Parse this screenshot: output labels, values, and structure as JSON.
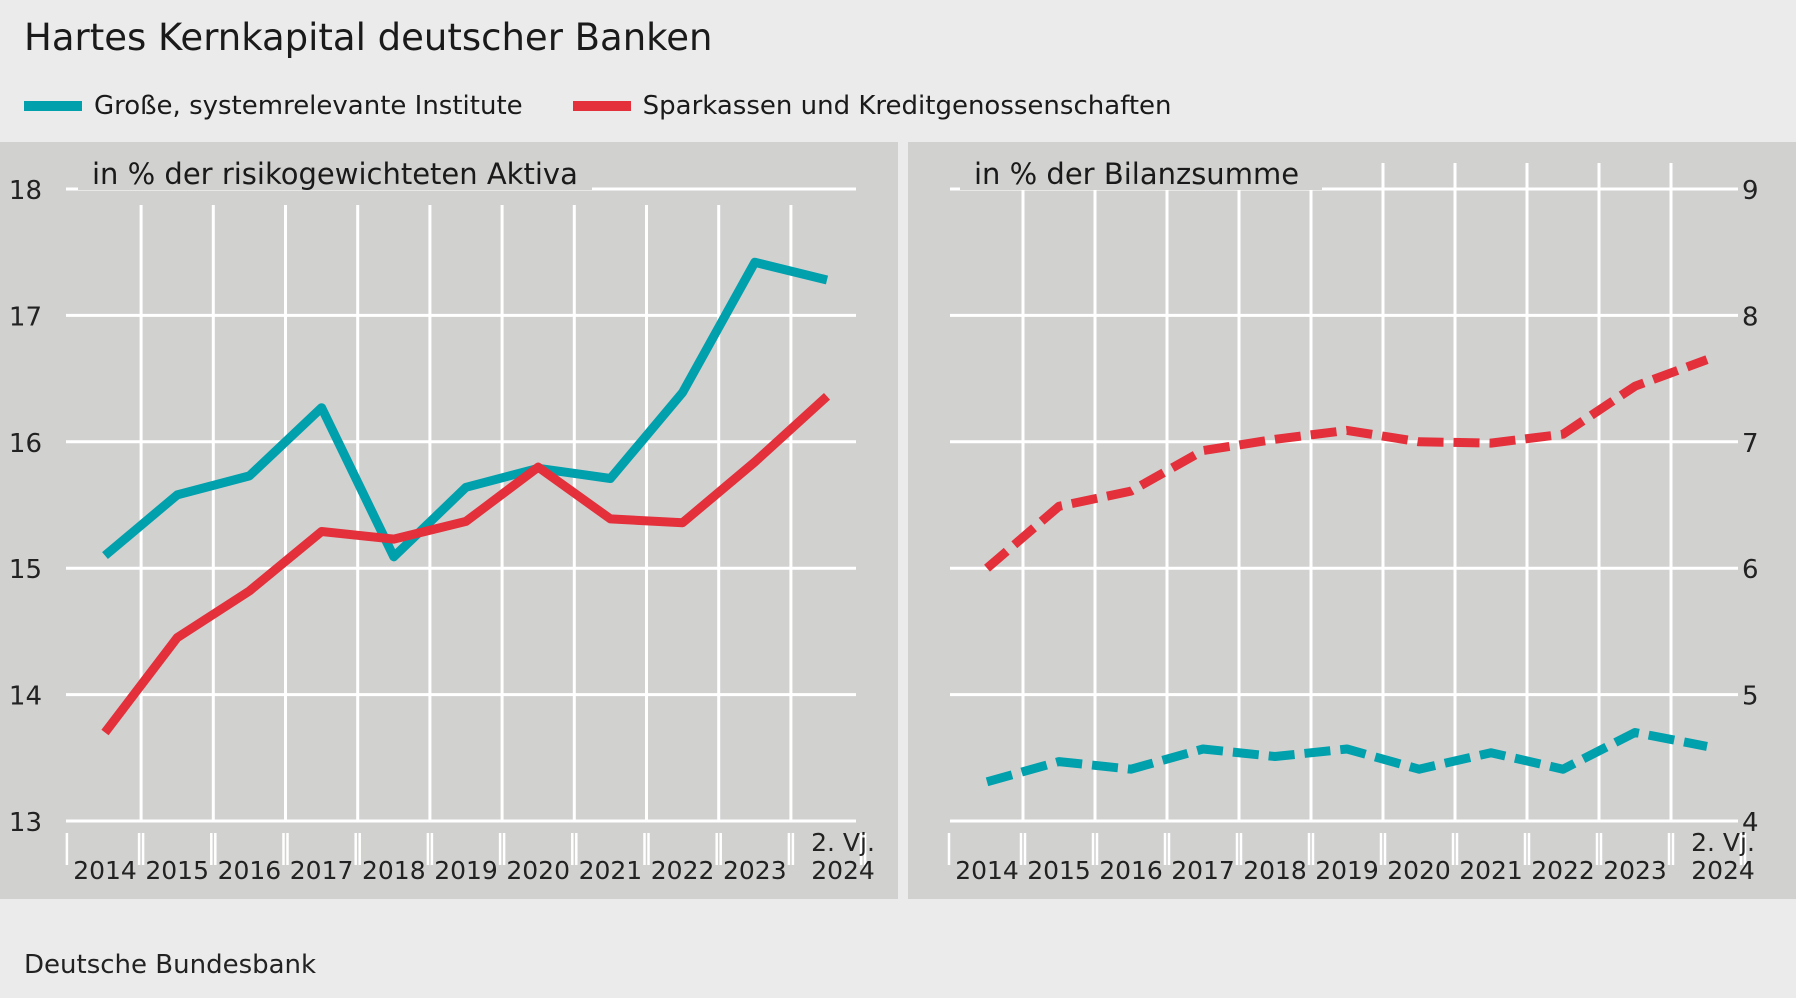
{
  "title": "Hartes Kernkapital deutscher Banken",
  "legend": [
    {
      "label": "Große, systemrelevante Institute",
      "color": "#00a0ad"
    },
    {
      "label": "Sparkassen und Kreditgenossenschaften",
      "color": "#e3303b"
    }
  ],
  "source": "Deutsche Bundesbank",
  "chart_data": [
    {
      "type": "line",
      "title": "in % der risikogewichteten Aktiva",
      "x": [
        "2014",
        "2015",
        "2016",
        "2017",
        "2018",
        "2019",
        "2020",
        "2021",
        "2022",
        "2023",
        "2. Vj. 2024"
      ],
      "ylim": [
        13,
        18
      ],
      "yticks": [
        13,
        14,
        15,
        16,
        17,
        18
      ],
      "y_axis_side": "left",
      "grid": true,
      "series": [
        {
          "name": "Große, systemrelevante Institute",
          "color": "#00a0ad",
          "style": "solid",
          "values": [
            15.1,
            15.58,
            15.73,
            16.27,
            15.09,
            15.64,
            15.79,
            15.71,
            16.39,
            17.42,
            17.28
          ]
        },
        {
          "name": "Sparkassen und Kreditgenossenschaften",
          "color": "#e3303b",
          "style": "solid",
          "values": [
            13.7,
            14.45,
            14.82,
            15.29,
            15.23,
            15.37,
            15.8,
            15.39,
            15.36,
            15.84,
            16.36
          ]
        }
      ]
    },
    {
      "type": "line",
      "title": "in % der Bilanzsumme",
      "x": [
        "2014",
        "2015",
        "2016",
        "2017",
        "2018",
        "2019",
        "2020",
        "2021",
        "2022",
        "2023",
        "2. Vj. 2024"
      ],
      "ylim": [
        4,
        9
      ],
      "yticks": [
        4,
        5,
        6,
        7,
        8,
        9
      ],
      "y_axis_side": "right",
      "grid": true,
      "series": [
        {
          "name": "Große, systemrelevante Institute",
          "color": "#00a0ad",
          "style": "dashed",
          "values": [
            4.31,
            4.47,
            4.41,
            4.57,
            4.51,
            4.57,
            4.41,
            4.54,
            4.41,
            4.7,
            4.59
          ]
        },
        {
          "name": "Sparkassen und Kreditgenossenschaften",
          "color": "#e3303b",
          "style": "dashed",
          "values": [
            6.0,
            6.49,
            6.61,
            6.93,
            7.02,
            7.09,
            7.0,
            6.99,
            7.06,
            7.44,
            7.65
          ]
        }
      ]
    }
  ]
}
